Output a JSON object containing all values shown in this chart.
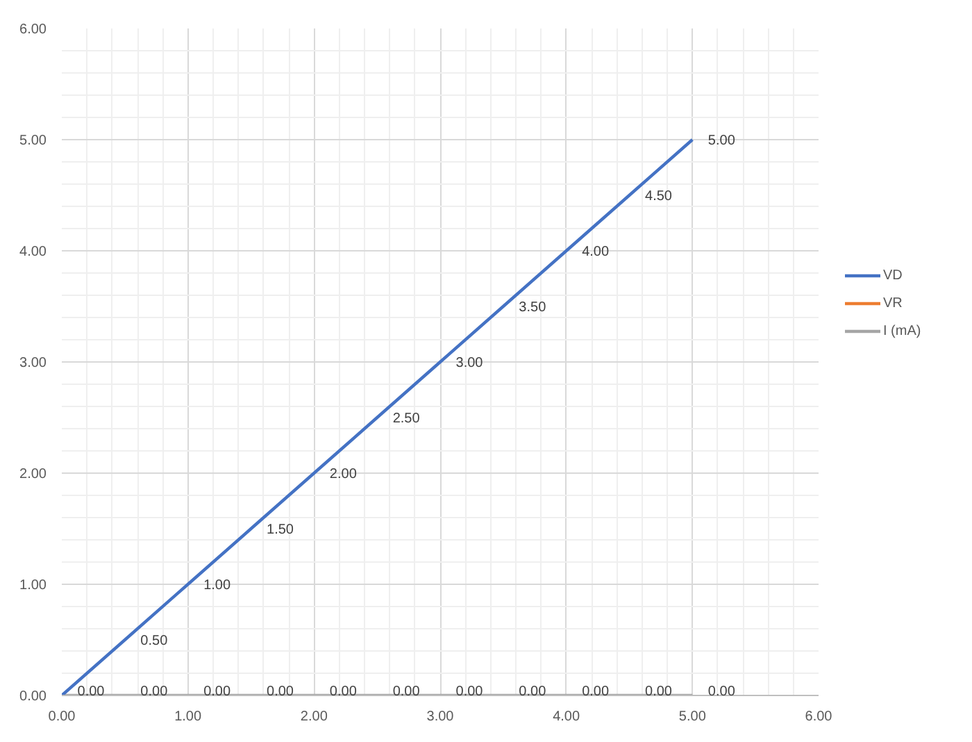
{
  "chart_data": {
    "type": "line",
    "x": [
      0,
      0.5,
      1,
      1.5,
      2,
      2.5,
      3,
      3.5,
      4,
      4.5,
      5
    ],
    "series": [
      {
        "name": "VR",
        "color": "#ed7d31",
        "values": [
          null,
          null,
          null,
          null,
          null,
          null,
          null,
          null,
          null,
          null,
          null
        ]
      },
      {
        "name": "I (mA)",
        "color": "#a5a5a5",
        "values": [
          0,
          0,
          0,
          0,
          0,
          0,
          0,
          0,
          0,
          0,
          0
        ],
        "value_labels": [
          "0.00",
          "0.00",
          "0.00",
          "0.00",
          "0.00",
          "0.00",
          "0.00",
          "0.00",
          "0.00",
          "0.00",
          "0.00"
        ]
      },
      {
        "name": "VD",
        "color": "#4472c4",
        "values": [
          0,
          0.5,
          1,
          1.5,
          2,
          2.5,
          3,
          3.5,
          4,
          4.5,
          5
        ],
        "value_labels": [
          null,
          "0.50",
          "1.00",
          "1.50",
          "2.00",
          "2.50",
          "3.00",
          "3.50",
          "4.00",
          "4.50",
          "5.00"
        ]
      }
    ],
    "xlim": [
      0,
      6
    ],
    "ylim": [
      0,
      6
    ],
    "xticks": [
      {
        "value": 0,
        "label": "0.00"
      },
      {
        "value": 1,
        "label": "1.00"
      },
      {
        "value": 2,
        "label": "2.00"
      },
      {
        "value": 3,
        "label": "3.00"
      },
      {
        "value": 4,
        "label": "4.00"
      },
      {
        "value": 5,
        "label": "5.00"
      },
      {
        "value": 6,
        "label": "6.00"
      }
    ],
    "yticks": [
      {
        "value": 0,
        "label": "0.00"
      },
      {
        "value": 1,
        "label": "1.00"
      },
      {
        "value": 2,
        "label": "2.00"
      },
      {
        "value": 3,
        "label": "3.00"
      },
      {
        "value": 4,
        "label": "4.00"
      },
      {
        "value": 5,
        "label": "5.00"
      },
      {
        "value": 6,
        "label": "6.00"
      }
    ],
    "grid": true,
    "legend": "right"
  }
}
